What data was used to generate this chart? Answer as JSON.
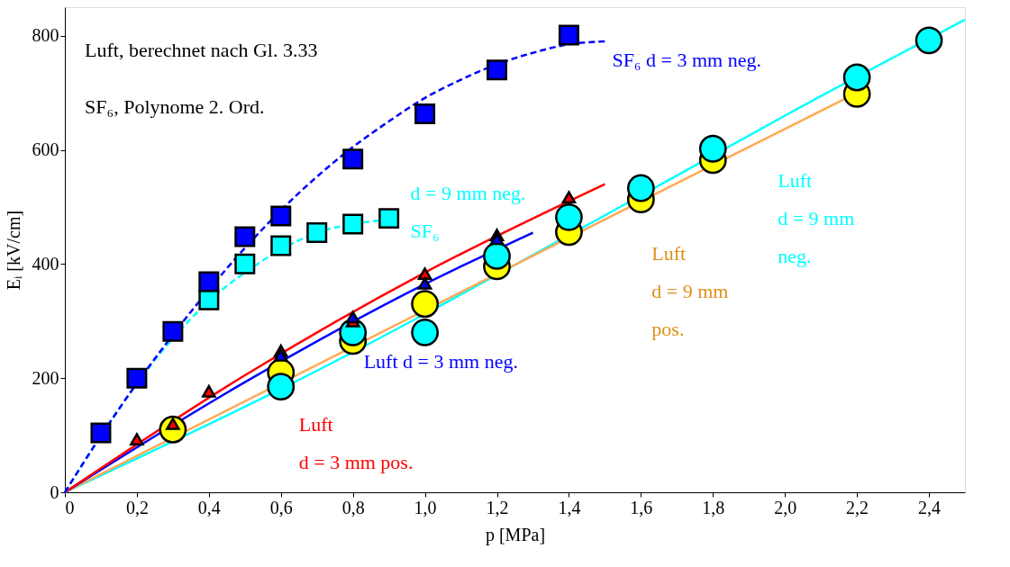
{
  "chart_data": {
    "type": "scatter",
    "xlabel": "p [MPa]",
    "ylabel": "Eᵢ [kV/cm]",
    "annotations": [
      "Luft, berechnet nach Gl. 3.33",
      "SF₆, Polynome 2. Ord."
    ],
    "xlim": [
      0,
      2.5
    ],
    "ylim": [
      0,
      850
    ],
    "xticks": [
      0,
      {
        "value": 0.2,
        "label": "0,2"
      },
      {
        "value": 0.4,
        "label": "0,4"
      },
      {
        "value": 0.6,
        "label": "0,6"
      },
      {
        "value": 0.8,
        "label": "0,8"
      },
      {
        "value": 1.0,
        "label": "1,0"
      },
      {
        "value": 1.2,
        "label": "1,2"
      },
      {
        "value": 1.4,
        "label": "1,4"
      },
      {
        "value": 1.6,
        "label": "1,6"
      },
      {
        "value": 1.8,
        "label": "1,8"
      },
      {
        "value": 2.0,
        "label": "2,0"
      },
      {
        "value": 2.2,
        "label": "2,2"
      },
      {
        "value": 2.4,
        "label": "2,4"
      }
    ],
    "yticks": [
      0,
      200,
      400,
      600,
      800
    ],
    "grid": false,
    "legend": false,
    "series": [
      {
        "type": "line",
        "color": "#00ffff",
        "line_style": "solid",
        "marker": "none",
        "x": [
          0,
          0.6,
          1.6,
          2.0,
          2.5
        ],
        "values": [
          0,
          181,
          520,
          660,
          828
        ]
      },
      {
        "type": "line",
        "color": "#ffa955",
        "line_style": "solid",
        "marker": "none",
        "x": [
          0,
          1.6,
          2.2
        ],
        "values": [
          0,
          510,
          700
        ]
      },
      {
        "type": "line",
        "color": "#0000ff",
        "line_style": "solid",
        "marker": "none",
        "x": [
          0,
          0.5,
          1.0,
          1.3
        ],
        "values": [
          0,
          193,
          365,
          455
        ]
      },
      {
        "type": "line",
        "color": "#ff0000",
        "line_style": "solid",
        "marker": "none",
        "x": [
          0,
          0.5,
          1.0,
          1.5
        ],
        "values": [
          0,
          205,
          385,
          540
        ]
      },
      {
        "type": "line",
        "color": "#00ffff",
        "line_style": "dashed",
        "marker": "none",
        "x": [
          0,
          0.3,
          0.4,
          0.5,
          0.6,
          0.7,
          0.8,
          0.9
        ],
        "values": [
          0,
          270,
          335,
          385,
          425,
          455,
          470,
          478
        ]
      },
      {
        "type": "line",
        "color": "#0000ff",
        "line_style": "dashed",
        "marker": "none",
        "x": [
          0,
          0.1,
          0.2,
          0.3,
          0.4,
          0.5,
          0.6,
          0.7,
          0.8,
          0.9,
          1.0,
          1.1,
          1.2,
          1.3,
          1.4,
          1.5
        ],
        "values": [
          0,
          99,
          191,
          276,
          355,
          428,
          494,
          553,
          605,
          650,
          691,
          723,
          750,
          770,
          785,
          790
        ]
      },
      {
        "name": "Luft\nd = 9 mm\npos.",
        "color": "#ffff00",
        "marker": "circle",
        "x": [
          0.3,
          0.6,
          0.8,
          1.0,
          1.2,
          1.4,
          1.6,
          1.8,
          2.2
        ],
        "values": [
          110,
          210,
          265,
          330,
          396,
          456,
          513,
          582,
          698
        ]
      },
      {
        "name": "Luft\nd = 9 mm\nneg.",
        "color": "#00ffff",
        "marker": "circle",
        "x": [
          0.6,
          0.8,
          1.0,
          1.2,
          1.4,
          1.6,
          1.8,
          2.2,
          2.4
        ],
        "values": [
          185,
          280,
          280,
          414,
          482,
          533,
          602,
          727,
          792
        ]
      },
      {
        "name": "d = 9 mm neg.\nSF₆",
        "color": "#00ffff",
        "marker": "square",
        "x": [
          0.4,
          0.5,
          0.6,
          0.7,
          0.8,
          0.9
        ],
        "values": [
          337,
          400,
          432,
          455,
          470,
          480
        ]
      },
      {
        "name": "SF₆ d = 3 mm neg.",
        "color": "#0000ff",
        "marker": "square",
        "x": [
          0.1,
          0.2,
          0.3,
          0.4,
          0.5,
          0.6,
          0.8,
          1.0,
          1.2,
          1.4
        ],
        "values": [
          104,
          200,
          282,
          369,
          448,
          484,
          584,
          663,
          740,
          801
        ]
      },
      {
        "name": "Luft\nd = 3 mm pos.",
        "color": "#ff0000",
        "marker": "triangle",
        "x": [
          0.2,
          0.3,
          0.4,
          0.6,
          0.8,
          1.0,
          1.2,
          1.4
        ],
        "values": [
          93,
          120,
          177,
          248,
          300,
          383,
          451,
          517
        ]
      },
      {
        "name": "Luft d = 3 mm neg.",
        "color": "#0000ff",
        "marker": "triangle",
        "x": [
          0.6,
          0.8,
          1.0,
          1.2
        ],
        "values": [
          240,
          307,
          366,
          444
        ]
      }
    ]
  }
}
